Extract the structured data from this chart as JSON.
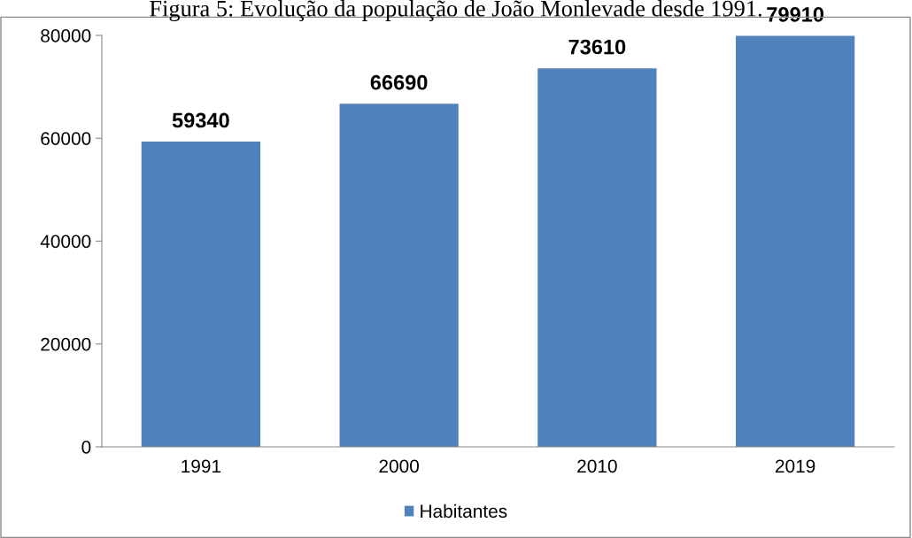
{
  "chart_data": {
    "type": "bar",
    "title": "Figura 5: Evolução da população de João Monlevade desde 1991.",
    "categories": [
      "1991",
      "2000",
      "2010",
      "2019"
    ],
    "series": [
      {
        "name": "Habitantes",
        "color": "#4f81bd",
        "values": [
          59340,
          66690,
          73610,
          79910
        ]
      }
    ],
    "ylim": [
      0,
      80000
    ],
    "yticks": [
      0,
      20000,
      40000,
      60000,
      80000
    ],
    "grid": false,
    "legend": "bottom",
    "data_labels": true
  }
}
